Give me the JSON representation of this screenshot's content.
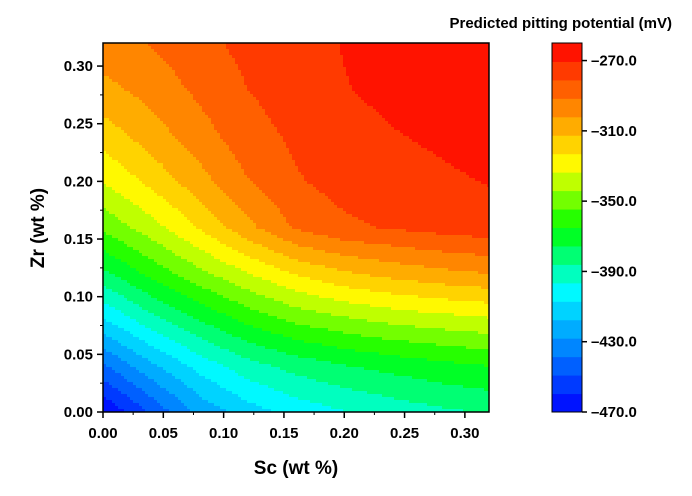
{
  "chart_data": {
    "type": "contour",
    "xlabel": "Sc (wt %)",
    "ylabel": "Zr (wt %)",
    "xlim": [
      0.0,
      0.32
    ],
    "ylim": [
      0.0,
      0.32
    ],
    "x_ticks": [
      "0.00",
      "0.05",
      "0.10",
      "0.15",
      "0.20",
      "0.25",
      "0.30"
    ],
    "y_ticks": [
      "0.00",
      "0.05",
      "0.10",
      "0.15",
      "0.20",
      "0.25",
      "0.30"
    ],
    "colorbar": {
      "title": "Predicted pitting potential (mV)",
      "range": [
        -470.0,
        -260.0
      ],
      "levels": 20,
      "tick_labels": [
        "-270.0",
        "-310.0",
        "-350.0",
        "-390.0",
        "-430.0",
        "-470.0"
      ],
      "tick_values": [
        -270,
        -310,
        -350,
        -390,
        -430,
        -470
      ]
    },
    "grid_x": [
      0.0,
      0.04,
      0.08,
      0.12,
      0.16,
      0.2,
      0.24,
      0.28,
      0.32
    ],
    "grid_y": [
      0.0,
      0.04,
      0.08,
      0.12,
      0.16,
      0.2,
      0.24,
      0.28,
      0.32
    ],
    "z": [
      [
        -470,
        -447,
        -425,
        -412,
        -403,
        -397,
        -392,
        -388,
        -385
      ],
      [
        -440,
        -420,
        -403,
        -390,
        -382,
        -376,
        -372,
        -368,
        -365
      ],
      [
        -408,
        -390,
        -375,
        -362,
        -352,
        -346,
        -341,
        -338,
        -335
      ],
      [
        -378,
        -362,
        -347,
        -334,
        -322,
        -314,
        -309,
        -305,
        -302
      ],
      [
        -352,
        -338,
        -322,
        -305,
        -290,
        -283,
        -280,
        -277,
        -275
      ],
      [
        -333,
        -320,
        -306,
        -292,
        -282,
        -277,
        -274,
        -272,
        -270
      ],
      [
        -318,
        -307,
        -296,
        -285,
        -279,
        -274,
        -271,
        -269,
        -267
      ],
      [
        -305,
        -298,
        -289,
        -281,
        -276,
        -271,
        -268,
        -266,
        -264
      ],
      [
        -296,
        -291,
        -284,
        -278,
        -274,
        -270,
        -267,
        -265,
        -262
      ]
    ],
    "colors": [
      "#0000ff",
      "#0080ff",
      "#00ffff",
      "#00ff00",
      "#ffff00",
      "#ff8000",
      "#ff0000"
    ]
  }
}
